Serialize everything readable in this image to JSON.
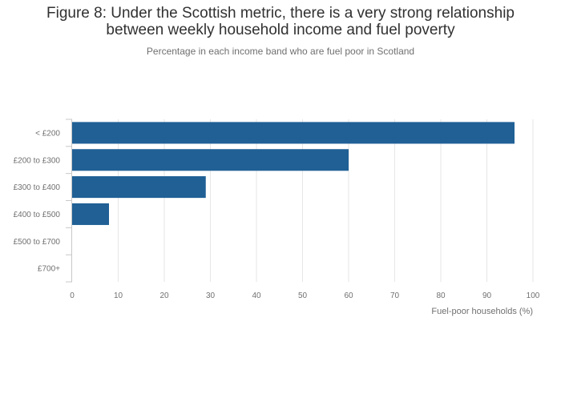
{
  "chart_data": {
    "type": "bar",
    "orientation": "horizontal",
    "title_line1": "Figure 8: Under the Scottish metric, there is a very strong relationship",
    "title_line2": "between weekly household income and fuel poverty",
    "subtitle": "Percentage in each income band who are fuel poor in Scotland",
    "categories": [
      "< £200",
      "£200 to £300",
      "£300 to £400",
      "£400 to £500",
      "£500 to £700",
      "£700+"
    ],
    "values": [
      96,
      60,
      29,
      8,
      0,
      0
    ],
    "xlabel": "Fuel-poor households (%)",
    "ylabel": "",
    "xlim": [
      0,
      100
    ],
    "xticks": [
      0,
      10,
      20,
      30,
      40,
      50,
      60,
      70,
      80,
      90,
      100
    ],
    "grid": "vertical",
    "bar_color": "#206095"
  }
}
